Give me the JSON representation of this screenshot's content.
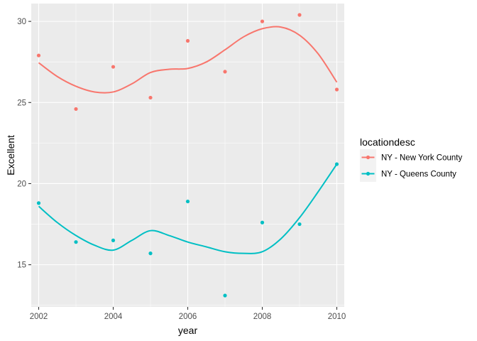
{
  "chart_data": {
    "type": "scatter",
    "title": "",
    "xlabel": "year",
    "ylabel": "Excellent",
    "xlim": [
      2001.8,
      2010.2
    ],
    "ylim": [
      12.4,
      31.1
    ],
    "x_ticks": [
      2002,
      2004,
      2006,
      2008,
      2010
    ],
    "x_tick_labels": [
      "2002",
      "2004",
      "2006",
      "2008",
      "2010"
    ],
    "x_minor_ticks": [
      2003,
      2005,
      2007,
      2009
    ],
    "y_ticks": [
      15,
      20,
      25,
      30
    ],
    "y_tick_labels": [
      "15",
      "20",
      "25",
      "30"
    ],
    "y_minor_ticks": [
      12.5,
      17.5,
      22.5,
      27.5
    ],
    "grid": true,
    "panel_background": "#ebebeb",
    "legend": {
      "title": "locationdesc",
      "placement": "right"
    },
    "series": [
      {
        "name": "NY - New York County",
        "color": "#f8766d",
        "points": {
          "x": [
            2002,
            2003,
            2004,
            2005,
            2006,
            2007,
            2008,
            2009,
            2010
          ],
          "y": [
            27.9,
            24.6,
            27.2,
            25.3,
            28.8,
            26.9,
            30.0,
            30.4,
            25.8
          ]
        },
        "smooth": {
          "x": [
            2002,
            2002.5,
            2003,
            2003.5,
            2004,
            2004.5,
            2005,
            2005.5,
            2006,
            2006.5,
            2007,
            2007.5,
            2008,
            2008.5,
            2009,
            2009.5,
            2010
          ],
          "y": [
            27.45,
            26.6,
            26.0,
            25.65,
            25.65,
            26.15,
            26.85,
            27.05,
            27.1,
            27.5,
            28.25,
            29.05,
            29.55,
            29.65,
            29.15,
            28.0,
            26.25
          ]
        }
      },
      {
        "name": "NY - Queens County",
        "color": "#00bfc4",
        "points": {
          "x": [
            2002,
            2003,
            2004,
            2005,
            2006,
            2007,
            2008,
            2009,
            2010
          ],
          "y": [
            18.8,
            16.4,
            16.5,
            15.7,
            18.9,
            13.1,
            17.6,
            17.5,
            21.2
          ]
        },
        "smooth": {
          "x": [
            2002,
            2002.5,
            2003,
            2003.5,
            2004,
            2004.5,
            2005,
            2005.5,
            2006,
            2006.5,
            2007,
            2007.5,
            2008,
            2008.5,
            2009,
            2009.5,
            2010
          ],
          "y": [
            18.6,
            17.6,
            16.8,
            16.2,
            15.9,
            16.5,
            17.1,
            16.8,
            16.4,
            16.1,
            15.8,
            15.7,
            15.8,
            16.6,
            17.9,
            19.5,
            21.2
          ]
        }
      }
    ]
  }
}
